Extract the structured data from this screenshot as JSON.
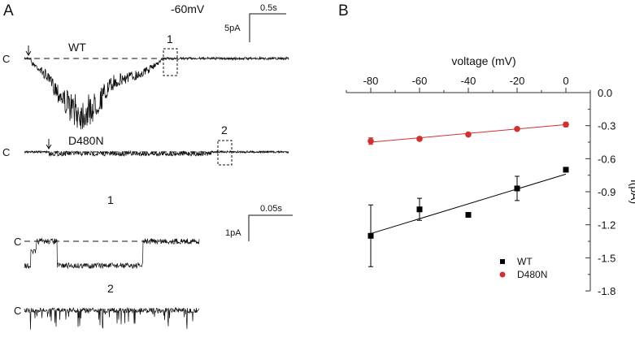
{
  "panel_a": {
    "label": "A",
    "voltage": "-60mV",
    "scale_top": {
      "time": "0.5s",
      "current": "5pA"
    },
    "scale_bottom": {
      "time": "0.05s",
      "current": "1pA"
    },
    "closed_label": "C",
    "traces": [
      {
        "name": "WT",
        "box": "1"
      },
      {
        "name": "D480N",
        "box": "2"
      }
    ],
    "zoom_labels": [
      "1",
      "2"
    ]
  },
  "chart_data": {
    "panel_label": "B",
    "type": "scatter",
    "xlabel": "voltage (mV)",
    "ylabel": "I(pA)",
    "xlim": [
      -90,
      10
    ],
    "ylim": [
      -1.8,
      0.0
    ],
    "xticks": [
      -80,
      -60,
      -40,
      -20,
      0
    ],
    "yticks": [
      "0.0",
      "-0.3",
      "-0.6",
      "-0.9",
      "-1.2",
      "-1.5",
      "-1.8"
    ],
    "x_axis_position": "top",
    "y_axis_position": "right",
    "legend_position": "bottom-right",
    "series": [
      {
        "name": "WT",
        "color": "#000000",
        "marker": "square",
        "x": [
          -80,
          -60,
          -40,
          -20,
          0
        ],
        "y": [
          -1.3,
          -1.06,
          -1.11,
          -0.87,
          -0.7
        ],
        "err": [
          0.28,
          0.1,
          0.02,
          0.11,
          0.02
        ],
        "fit": [
          [
            -80,
            -1.28
          ],
          [
            0,
            -0.74
          ]
        ]
      },
      {
        "name": "D480N",
        "color": "#d03030",
        "marker": "circle",
        "x": [
          -80,
          -60,
          -40,
          -20,
          0
        ],
        "y": [
          -0.44,
          -0.42,
          -0.38,
          -0.33,
          -0.29
        ],
        "err": [
          0.03,
          0.015,
          0.01,
          0.01,
          0.02
        ],
        "fit": [
          [
            -80,
            -0.45
          ],
          [
            0,
            -0.29
          ]
        ]
      }
    ]
  }
}
